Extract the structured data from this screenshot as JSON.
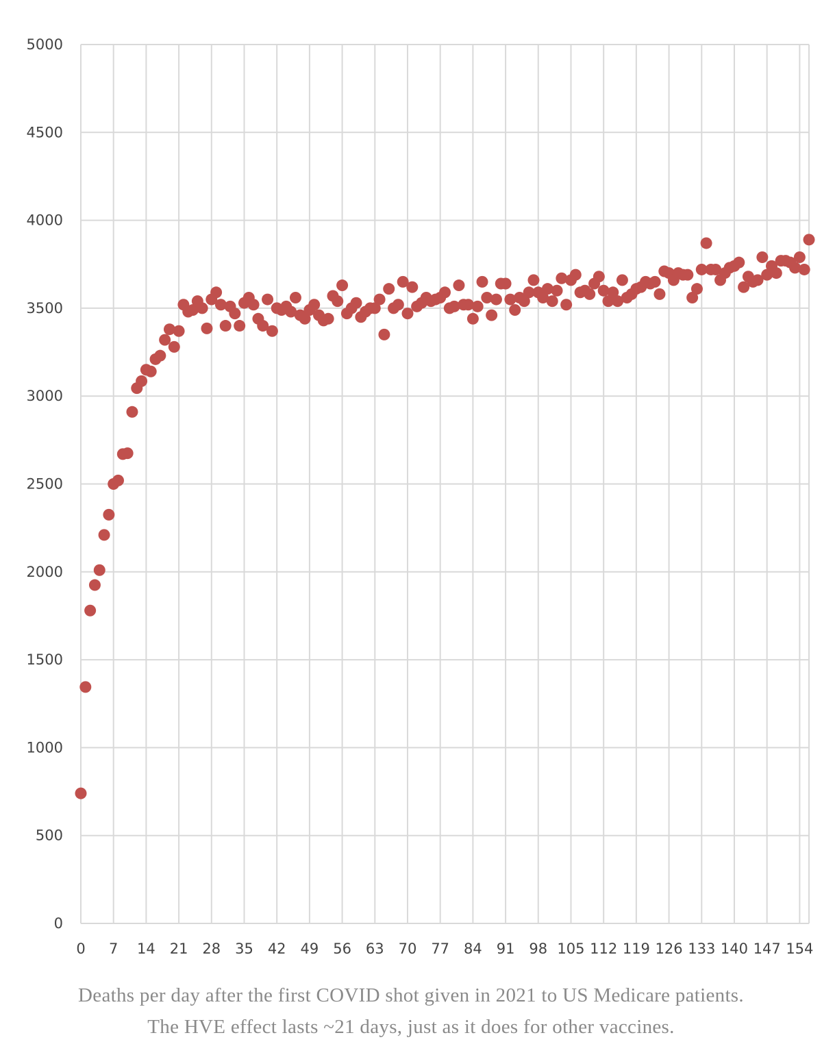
{
  "colors": {
    "marker": "#c0504d",
    "grid": "#d9d9d9",
    "tick_text": "#444444",
    "caption_text": "#8a8a8a"
  },
  "caption": {
    "line1": "Deaths per day after the first COVID shot given in 2021 to US Medicare patients.",
    "line2": "The HVE effect lasts ~21 days, just as it does for other vaccines."
  },
  "chart_data": {
    "type": "scatter",
    "title": "",
    "xlabel": "",
    "ylabel": "",
    "xlim": [
      0,
      156
    ],
    "ylim": [
      0,
      5000
    ],
    "grid": true,
    "legend": "none",
    "x_ticks": [
      0,
      7,
      14,
      21,
      28,
      35,
      42,
      49,
      56,
      63,
      70,
      77,
      84,
      91,
      98,
      105,
      112,
      119,
      126,
      133,
      140,
      147,
      154
    ],
    "y_ticks": [
      0,
      500,
      1000,
      1500,
      2000,
      2500,
      3000,
      3500,
      4000,
      4500,
      5000
    ],
    "series": [
      {
        "x": [
          0,
          1,
          2,
          3,
          4,
          5,
          6,
          7,
          8,
          9,
          10,
          11,
          12,
          13,
          14,
          15,
          16,
          17,
          18,
          19,
          20,
          21,
          22,
          23,
          24,
          25,
          26,
          27,
          28,
          29,
          30,
          31,
          32,
          33,
          34,
          35,
          36,
          37,
          38,
          39,
          40,
          41,
          42,
          43,
          44,
          45,
          46,
          47,
          48,
          49,
          50,
          51,
          52,
          53,
          54,
          55,
          56,
          57,
          58,
          59,
          60,
          61,
          62,
          63,
          64,
          65,
          66,
          67,
          68,
          69,
          70,
          71,
          72,
          73,
          74,
          75,
          76,
          77,
          78,
          79,
          80,
          81,
          82,
          83,
          84,
          85,
          86,
          87,
          88,
          89,
          90,
          91,
          92,
          93,
          94,
          95,
          96,
          97,
          98,
          99,
          100,
          101,
          102,
          103,
          104,
          105,
          106,
          107,
          108,
          109,
          110,
          111,
          112,
          113,
          114,
          115,
          116,
          117,
          118,
          119,
          120,
          121,
          122,
          123,
          124,
          125,
          126,
          127,
          128,
          129,
          130,
          131,
          132,
          133,
          134,
          135,
          136,
          137,
          138,
          139,
          140,
          141,
          142,
          143,
          144,
          145,
          146,
          147,
          148,
          149,
          150,
          151,
          152,
          153,
          154,
          155,
          156
        ],
        "y": [
          740,
          1345,
          1780,
          1925,
          2010,
          2210,
          2325,
          2500,
          2520,
          2670,
          2675,
          2910,
          3045,
          3085,
          3150,
          3140,
          3210,
          3230,
          3320,
          3380,
          3280,
          3370,
          3520,
          3480,
          3490,
          3540,
          3500,
          3385,
          3550,
          3590,
          3520,
          3400,
          3510,
          3470,
          3400,
          3530,
          3560,
          3520,
          3440,
          3400,
          3550,
          3370,
          3500,
          3490,
          3510,
          3480,
          3560,
          3460,
          3440,
          3490,
          3520,
          3460,
          3430,
          3440,
          3570,
          3540,
          3630,
          3470,
          3500,
          3530,
          3450,
          3480,
          3500,
          3500,
          3550,
          3350,
          3610,
          3500,
          3520,
          3650,
          3470,
          3620,
          3510,
          3530,
          3560,
          3540,
          3550,
          3560,
          3590,
          3500,
          3510,
          3630,
          3520,
          3520,
          3440,
          3510,
          3650,
          3560,
          3460,
          3550,
          3640,
          3640,
          3550,
          3490,
          3560,
          3540,
          3590,
          3660,
          3590,
          3560,
          3610,
          3540,
          3600,
          3670,
          3520,
          3660,
          3690,
          3590,
          3600,
          3580,
          3640,
          3680,
          3600,
          3540,
          3590,
          3540,
          3660,
          3560,
          3580,
          3610,
          3620,
          3650,
          3640,
          3650,
          3580,
          3710,
          3700,
          3660,
          3700,
          3690,
          3690,
          3560,
          3610,
          3720,
          3870,
          3720,
          3720,
          3660,
          3700,
          3730,
          3740,
          3760,
          3620,
          3680,
          3650,
          3660,
          3790,
          3690,
          3740,
          3700,
          3770,
          3770,
          3760,
          3730,
          3790,
          3720,
          3890
        ]
      }
    ]
  }
}
